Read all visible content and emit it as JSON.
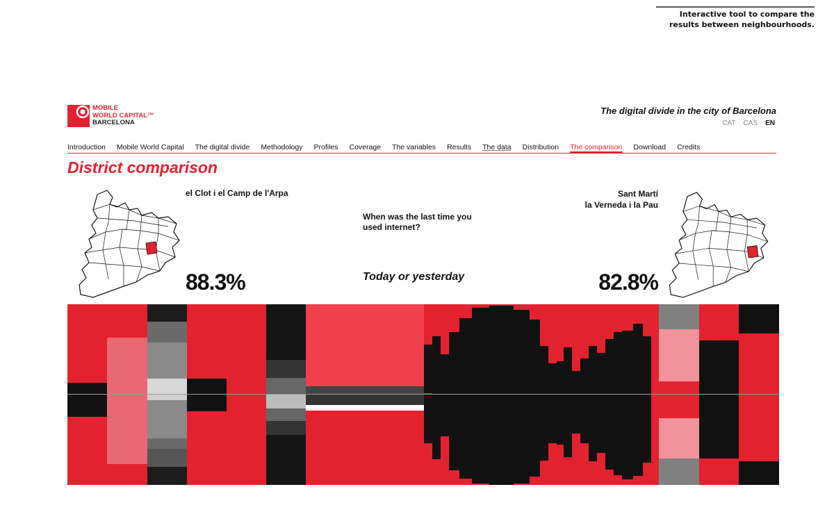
{
  "caption": {
    "line1": "Interactive tool to compare the",
    "line2": "results between neighbourhoods."
  },
  "logo": {
    "line1": "MOBILE",
    "line2": "WORLD CAPITAL",
    "line3": "BARCELONA",
    "trademark": "™"
  },
  "site_title": "The digital divide in the city of Barcelona",
  "languages": [
    {
      "label": "CAT"
    },
    {
      "label": "CAS"
    },
    {
      "label": "EN",
      "active": true
    }
  ],
  "nav": [
    {
      "label": "Introduction"
    },
    {
      "label": "Mobile World Capital"
    },
    {
      "label": "The digital divide"
    },
    {
      "label": "Methodology"
    },
    {
      "label": "Profiles"
    },
    {
      "label": "Coverage"
    },
    {
      "label": "The variables"
    },
    {
      "label": "Results"
    },
    {
      "label": "The data"
    },
    {
      "label": "Distribution"
    },
    {
      "label": "The comparison",
      "active": true
    },
    {
      "label": "Download"
    },
    {
      "label": "Credits"
    }
  ],
  "page_title": "District comparison",
  "left": {
    "name": "el Clot i el Camp de l'Arpa",
    "percent": "88.3%"
  },
  "right": {
    "name_line1": "Sant Martí",
    "name_line2": "la Verneda i la Pau",
    "percent": "82.8%"
  },
  "question": {
    "line1": "When was the last time you",
    "line2": "used internet?"
  },
  "answer": "Today or yesterday",
  "colors": {
    "accent": "#e3222f",
    "dark": "#111111",
    "light_red": "#f3979e"
  }
}
